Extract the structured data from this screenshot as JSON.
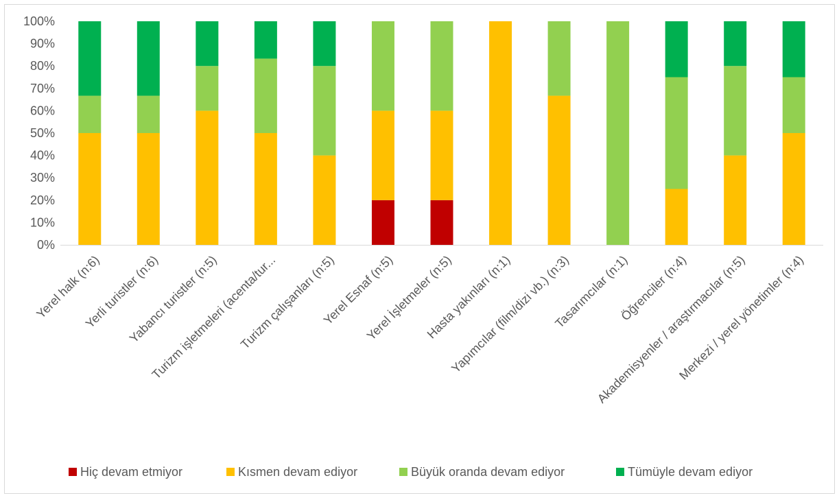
{
  "chart_data": {
    "type": "bar",
    "stacked": true,
    "percent": true,
    "title": "",
    "xlabel": "",
    "ylabel": "",
    "ylim": [
      0,
      100
    ],
    "y_ticks": [
      "0%",
      "10%",
      "20%",
      "30%",
      "40%",
      "50%",
      "60%",
      "70%",
      "80%",
      "90%",
      "100%"
    ],
    "grid": false,
    "legend_position": "bottom",
    "categories": [
      "Yerel halk (n:6)",
      "Yerli turistler (n:6)",
      "Yabancı turistler (n:5)",
      "Turizm işletmeleri (acenta/tur...",
      "Turizm çalışanları (n:5)",
      "Yerel Esnaf (n:5)",
      "Yerel İşletmeler (n:5)",
      "Hasta yakınları (n:1)",
      "Yapımcılar (film/dizi vb.) (n:3)",
      "Tasarımcılar (n:1)",
      "Öğrenciler (n:4)",
      "Akademisyenler / araştırmacılar (n:5)",
      "Merkezi / yerel yönetimler (n:4)"
    ],
    "series": [
      {
        "name": "Hiç devam etmiyor",
        "color": "#c00000",
        "values": [
          0,
          0,
          0,
          0,
          0,
          20,
          20,
          0,
          0,
          0,
          0,
          0,
          0
        ]
      },
      {
        "name": "Kısmen devam ediyor",
        "color": "#ffc000",
        "values": [
          50,
          50,
          60,
          50,
          40,
          40,
          40,
          100,
          66.7,
          0,
          25,
          40,
          50
        ]
      },
      {
        "name": "Büyük oranda devam ediyor",
        "color": "#92d050",
        "values": [
          16.7,
          16.7,
          20,
          33.3,
          40,
          40,
          40,
          0,
          33.3,
          100,
          50,
          40,
          25
        ]
      },
      {
        "name": "Tümüyle devam ediyor",
        "color": "#00b050",
        "values": [
          33.3,
          33.3,
          20,
          16.7,
          20,
          0,
          0,
          0,
          0,
          0,
          25,
          20,
          25
        ]
      }
    ]
  }
}
